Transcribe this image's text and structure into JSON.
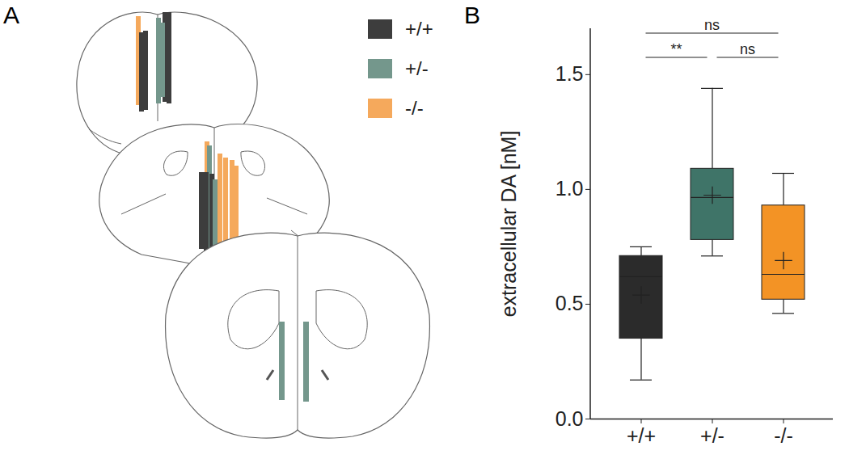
{
  "chart_data": [
    {
      "type": "diagram",
      "title": "A",
      "legend": "top-right",
      "series": [
        {
          "name": "+/+",
          "color": "#3d3d3d"
        },
        {
          "name": "+/-",
          "color": "#74978c"
        },
        {
          "name": "-/-",
          "color": "#f5a95c"
        }
      ]
    },
    {
      "type": "box",
      "title": "B",
      "categories": [
        "+/+",
        "+/-",
        "-/-"
      ],
      "colors": [
        "#2b2b2b",
        "#3f7468",
        "#f39325"
      ],
      "y_label": "extracellular DA [nM]",
      "whisker_low": [
        0.17,
        0.71,
        0.46
      ],
      "q1": [
        0.35,
        0.78,
        0.52
      ],
      "median": [
        0.62,
        0.965,
        0.63
      ],
      "q3": [
        0.71,
        1.09,
        0.93
      ],
      "whisker_high": [
        0.75,
        1.44,
        1.07
      ],
      "mean": [
        0.54,
        0.975,
        0.69
      ],
      "ylim": [
        0,
        1.7
      ],
      "yticks": [
        {
          "value": 0,
          "label": "0.0"
        },
        0.5,
        {
          "value": 1,
          "label": "1.0"
        },
        1.5
      ],
      "annotations": [
        {
          "from": "+/+",
          "to": "-/-",
          "text": "ns"
        },
        {
          "from": "+/+",
          "to": "+/-",
          "text": "**"
        },
        {
          "from": "+/-",
          "to": "-/-",
          "text": "ns"
        }
      ]
    }
  ]
}
